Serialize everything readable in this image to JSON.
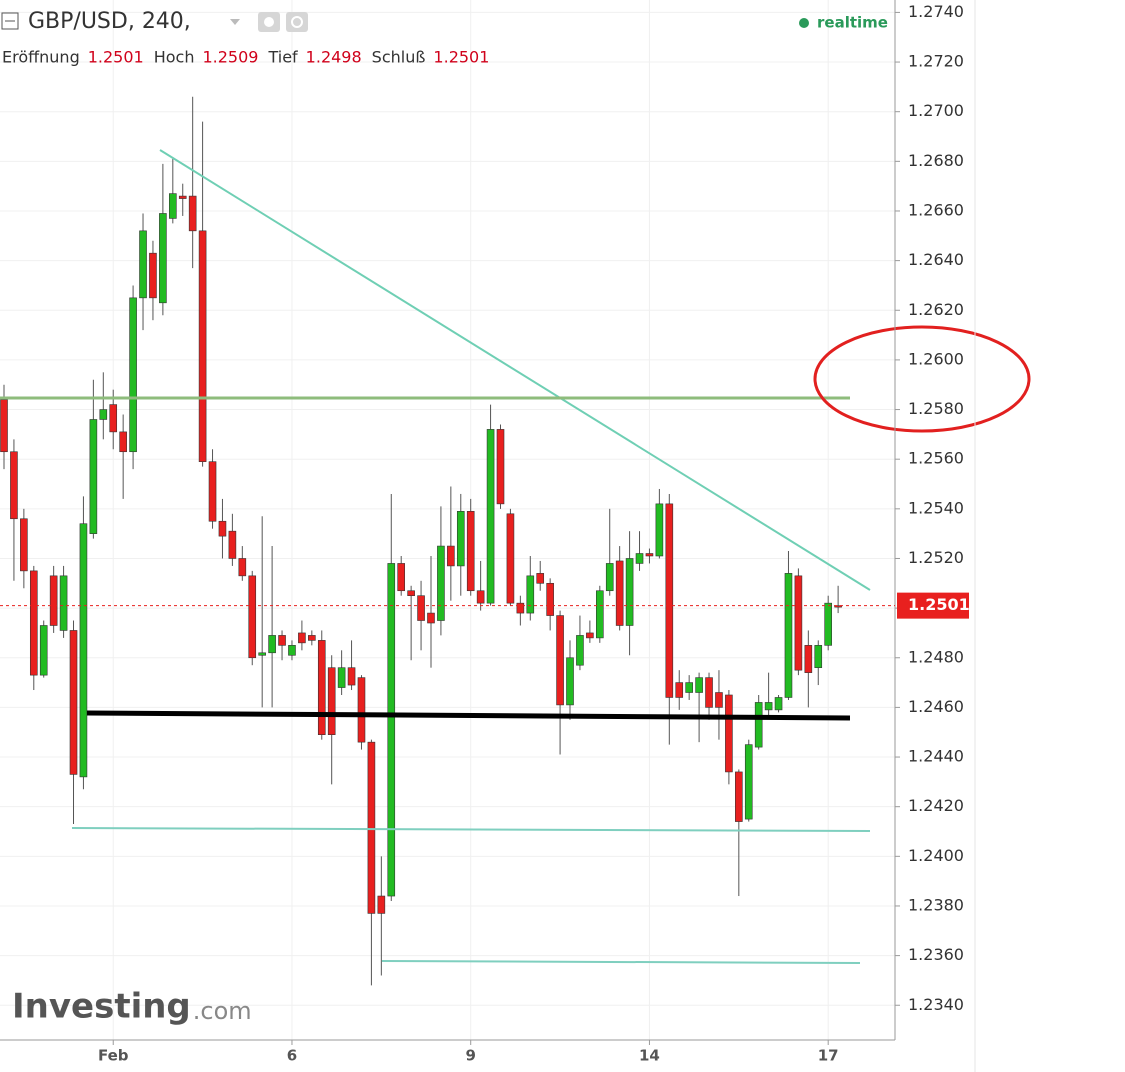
{
  "chart_data": {
    "type": "candlestick",
    "title": "GBP/USD, 240,",
    "status": "realtime",
    "ohlc_header": [
      {
        "label": "Eröffnung",
        "value": 1.2501
      },
      {
        "label": "Hoch",
        "value": 1.2509
      },
      {
        "label": "Tief",
        "value": 1.2498
      },
      {
        "label": "Schluß",
        "value": 1.2501
      }
    ],
    "watermark": [
      "Investing",
      ".com"
    ],
    "last_price": 1.2501,
    "up_color": "#22bb22",
    "down_color": "#e8201f",
    "categories": [
      null,
      null,
      null,
      null,
      null,
      null,
      null,
      null,
      null,
      null,
      null,
      "Feb",
      null,
      null,
      null,
      null,
      null,
      null,
      null,
      null,
      null,
      null,
      null,
      null,
      null,
      null,
      null,
      null,
      null,
      "6",
      null,
      null,
      null,
      null,
      null,
      null,
      null,
      null,
      null,
      null,
      null,
      null,
      null,
      null,
      null,
      null,
      null,
      "9",
      null,
      null,
      null,
      null,
      null,
      null,
      null,
      null,
      null,
      null,
      null,
      null,
      null,
      null,
      null,
      null,
      null,
      "14",
      null,
      null,
      null,
      null,
      null,
      null,
      null,
      null,
      null,
      null,
      null,
      null,
      null,
      null,
      null,
      null,
      null,
      "17",
      null
    ],
    "open": [
      1.2584,
      1.2563,
      1.2536,
      1.2515,
      1.2473,
      1.2513,
      1.2491,
      1.2491,
      1.2432,
      1.253,
      1.2576,
      1.2582,
      1.2571,
      1.2563,
      1.2625,
      1.2643,
      1.2623,
      1.2657,
      1.2666,
      1.2666,
      1.2652,
      1.2559,
      1.2535,
      1.2531,
      1.252,
      1.2513,
      1.2481,
      1.2482,
      1.2489,
      1.2481,
      1.249,
      1.2489,
      1.2487,
      1.2476,
      1.2468,
      1.2476,
      1.2472,
      1.2446,
      1.2384,
      1.2384,
      1.2518,
      1.2507,
      1.2505,
      1.2498,
      1.2495,
      1.2525,
      1.2517,
      1.2539,
      1.2507,
      1.2502,
      1.2572,
      1.2538,
      1.2502,
      1.2498,
      1.2514,
      1.251,
      1.2497,
      1.2461,
      1.2477,
      1.249,
      1.2488,
      1.2507,
      1.2519,
      1.2493,
      1.2518,
      1.2522,
      1.2521,
      1.2542,
      1.247,
      1.2466,
      1.2466,
      1.2472,
      1.2466,
      1.2465,
      1.2434,
      1.2415,
      1.2444,
      1.2459,
      1.2459,
      1.2464,
      1.2513,
      1.2485,
      1.2476,
      1.2485,
      1.2501
    ],
    "high": [
      1.259,
      1.2568,
      1.254,
      1.2517,
      1.2495,
      1.2517,
      1.2517,
      1.2495,
      1.2545,
      1.2592,
      1.2595,
      1.2588,
      1.2578,
      1.263,
      1.2659,
      1.2648,
      1.2679,
      1.2681,
      1.2671,
      1.2706,
      1.2696,
      1.2564,
      1.2544,
      1.2538,
      1.2525,
      1.2515,
      1.2537,
      1.2525,
      1.2491,
      1.2487,
      1.2495,
      1.2491,
      1.2491,
      1.2481,
      1.2483,
      1.2487,
      1.2473,
      1.2447,
      1.24,
      1.2546,
      1.2521,
      1.2509,
      1.2511,
      1.2521,
      1.2541,
      1.2549,
      1.2546,
      1.2544,
      1.2519,
      1.2582,
      1.2574,
      1.254,
      1.2505,
      1.2521,
      1.2519,
      1.2512,
      1.2499,
      1.2487,
      1.2497,
      1.2495,
      1.2509,
      1.254,
      1.2525,
      1.2531,
      1.2531,
      1.2524,
      1.2548,
      1.2546,
      1.2475,
      1.2473,
      1.2474,
      1.2474,
      1.2475,
      1.2467,
      1.2435,
      1.2447,
      1.2465,
      1.2474,
      1.2465,
      1.2523,
      1.2516,
      1.2491,
      1.2487,
      1.2505,
      1.2509
    ],
    "low": [
      1.2556,
      1.2511,
      1.2508,
      1.2467,
      1.2472,
      1.249,
      1.2488,
      1.2413,
      1.2427,
      1.2528,
      1.2568,
      1.2564,
      1.2544,
      1.2556,
      1.2612,
      1.2616,
      1.2618,
      1.2655,
      1.2658,
      1.2637,
      1.2557,
      1.2532,
      1.252,
      1.2517,
      1.2511,
      1.2477,
      1.246,
      1.246,
      1.2479,
      1.2479,
      1.2483,
      1.2485,
      1.2447,
      1.2429,
      1.2465,
      1.2467,
      1.2443,
      1.2348,
      1.2352,
      1.2382,
      1.2505,
      1.2479,
      1.2483,
      1.2476,
      1.2489,
      1.2503,
      1.2505,
      1.2505,
      1.2499,
      1.2501,
      1.254,
      1.2501,
      1.2493,
      1.2495,
      1.2507,
      1.2491,
      1.2441,
      1.2455,
      1.2475,
      1.2486,
      1.2486,
      1.2505,
      1.2491,
      1.2481,
      1.2515,
      1.2518,
      1.252,
      1.2445,
      1.2459,
      1.2463,
      1.2446,
      1.2455,
      1.2447,
      1.2429,
      1.2384,
      1.2414,
      1.2443,
      1.2456,
      1.2458,
      1.2463,
      1.2473,
      1.246,
      1.2469,
      1.2483,
      1.2498
    ],
    "close": [
      1.2563,
      1.2536,
      1.2515,
      1.2473,
      1.2493,
      1.2493,
      1.2513,
      1.2433,
      1.2534,
      1.2576,
      1.258,
      1.2571,
      1.2563,
      1.2625,
      1.2652,
      1.2625,
      1.2659,
      1.2667,
      1.2665,
      1.2652,
      1.2559,
      1.2535,
      1.2529,
      1.252,
      1.2513,
      1.248,
      1.2482,
      1.2489,
      1.2485,
      1.2485,
      1.2486,
      1.2487,
      1.2449,
      1.2449,
      1.2476,
      1.2469,
      1.2446,
      1.2377,
      1.2377,
      1.2518,
      1.2507,
      1.2505,
      1.2495,
      1.2494,
      1.2525,
      1.2517,
      1.2539,
      1.2507,
      1.2502,
      1.2572,
      1.2542,
      1.2502,
      1.2498,
      1.2513,
      1.251,
      1.2497,
      1.2461,
      1.248,
      1.2489,
      1.2488,
      1.2507,
      1.2518,
      1.2493,
      1.252,
      1.2522,
      1.2521,
      1.2542,
      1.2464,
      1.2464,
      1.247,
      1.2472,
      1.246,
      1.246,
      1.2434,
      1.2414,
      1.2445,
      1.2462,
      1.2462,
      1.2464,
      1.2514,
      1.2475,
      1.2474,
      1.2485,
      1.2502,
      1.2501
    ],
    "ylim": [
      1.2326,
      1.2745
    ],
    "yticks": [
      {
        "value": 1.234,
        "label": "1.2340"
      },
      {
        "value": 1.236,
        "label": "1.2360"
      },
      {
        "value": 1.238,
        "label": "1.2380"
      },
      {
        "value": 1.24,
        "label": "1.2400"
      },
      {
        "value": 1.242,
        "label": "1.2420"
      },
      {
        "value": 1.244,
        "label": "1.2440"
      },
      {
        "value": 1.246,
        "label": "1.2460"
      },
      {
        "value": 1.248,
        "label": "1.2480"
      },
      {
        "value": 1.25,
        "label": "1.2500"
      },
      {
        "value": 1.252,
        "label": "1.2520"
      },
      {
        "value": 1.254,
        "label": "1.2540"
      },
      {
        "value": 1.256,
        "label": "1.2560"
      },
      {
        "value": 1.258,
        "label": "1.2580"
      },
      {
        "value": 1.26,
        "label": "1.2600"
      },
      {
        "value": 1.262,
        "label": "1.2620"
      },
      {
        "value": 1.264,
        "label": "1.2640"
      },
      {
        "value": 1.266,
        "label": "1.2660"
      },
      {
        "value": 1.268,
        "label": "1.2680"
      },
      {
        "value": 1.27,
        "label": "1.2700"
      },
      {
        "value": 1.272,
        "label": "1.2720"
      },
      {
        "value": 1.274,
        "label": "1.2740"
      }
    ],
    "grid": true
  }
}
